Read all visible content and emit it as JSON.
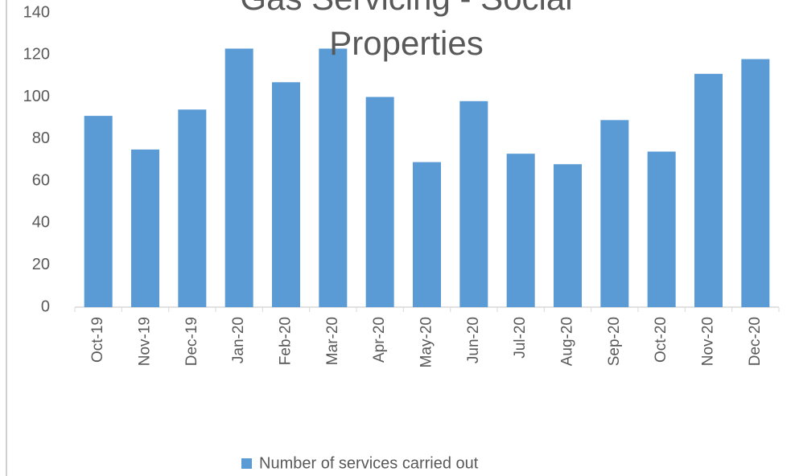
{
  "chart_data": {
    "type": "bar",
    "title": "Gas Servicing - Social Properties",
    "categories": [
      "Oct-19",
      "Nov-19",
      "Dec-19",
      "Jan-20",
      "Feb-20",
      "Mar-20",
      "Apr-20",
      "May-20",
      "Jun-20",
      "Jul-20",
      "Aug-20",
      "Sep-20",
      "Oct-20",
      "Nov-20",
      "Dec-20"
    ],
    "series": [
      {
        "name": "Number of services carried out",
        "color": "#5b9bd5",
        "values": [
          91,
          75,
          94,
          123,
          107,
          123,
          100,
          69,
          98,
          73,
          68,
          89,
          74,
          111,
          118
        ]
      }
    ],
    "ylim": [
      0,
      140
    ],
    "yticks": [
      0,
      20,
      40,
      60,
      80,
      100,
      120,
      140
    ],
    "grid": false,
    "legend": "bottom"
  }
}
